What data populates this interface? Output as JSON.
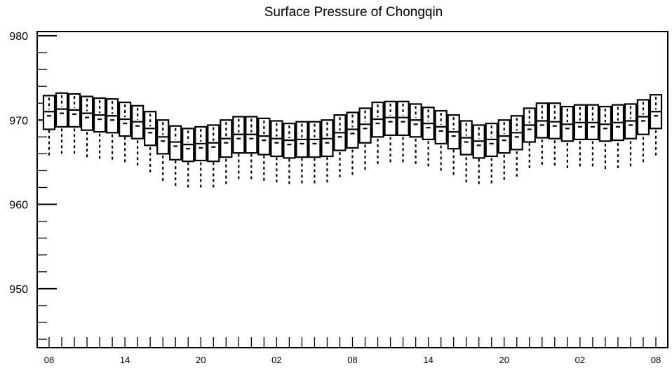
{
  "chart_data": {
    "type": "box",
    "title": "Surface Pressure of Chongqin",
    "xlabel": "",
    "ylabel": "",
    "ylim": [
      943,
      980.5
    ],
    "yticks": [
      950,
      960,
      970,
      980
    ],
    "ytick_labels": [
      "950",
      "960",
      "970",
      "980"
    ],
    "xtick_labels": [
      "08",
      "14",
      "20",
      "02",
      "08",
      "14",
      "20",
      "02",
      "08"
    ],
    "xtick_positions": [
      0,
      6,
      12,
      18,
      24,
      30,
      36,
      42,
      48
    ],
    "grid": false,
    "boxes": [
      {
        "x": 0,
        "whislo": 965.8,
        "q1": 968.9,
        "med": 971.0,
        "q3": 972.9,
        "whishi": 972.9
      },
      {
        "x": 1,
        "whislo": 966.0,
        "q1": 969.2,
        "med": 971.3,
        "q3": 973.2,
        "whishi": 973.2
      },
      {
        "x": 2,
        "whislo": 966.0,
        "q1": 969.2,
        "med": 971.2,
        "q3": 973.1,
        "whishi": 973.1
      },
      {
        "x": 3,
        "whislo": 965.6,
        "q1": 968.8,
        "med": 970.8,
        "q3": 972.8,
        "whishi": 972.8
      },
      {
        "x": 4,
        "whislo": 965.4,
        "q1": 968.6,
        "med": 970.6,
        "q3": 972.6,
        "whishi": 972.6
      },
      {
        "x": 5,
        "whislo": 965.3,
        "q1": 968.5,
        "med": 970.5,
        "q3": 972.5,
        "whishi": 972.5
      },
      {
        "x": 6,
        "whislo": 965.0,
        "q1": 968.1,
        "med": 970.1,
        "q3": 972.1,
        "whishi": 972.1
      },
      {
        "x": 7,
        "whislo": 964.6,
        "q1": 967.8,
        "med": 969.8,
        "q3": 971.7,
        "whishi": 971.7
      },
      {
        "x": 8,
        "whislo": 963.8,
        "q1": 967.0,
        "med": 969.0,
        "q3": 971.0,
        "whishi": 971.0
      },
      {
        "x": 9,
        "whislo": 962.8,
        "q1": 966.0,
        "med": 968.0,
        "q3": 970.0,
        "whishi": 970.0
      },
      {
        "x": 10,
        "whislo": 962.2,
        "q1": 965.3,
        "med": 967.4,
        "q3": 969.3,
        "whishi": 969.3
      },
      {
        "x": 11,
        "whislo": 962.0,
        "q1": 965.1,
        "med": 967.1,
        "q3": 969.0,
        "whishi": 969.0
      },
      {
        "x": 12,
        "whislo": 962.0,
        "q1": 965.2,
        "med": 967.2,
        "q3": 969.2,
        "whishi": 969.2
      },
      {
        "x": 13,
        "whislo": 962.0,
        "q1": 965.1,
        "med": 967.3,
        "q3": 969.4,
        "whishi": 969.4
      },
      {
        "x": 14,
        "whislo": 962.4,
        "q1": 965.6,
        "med": 967.8,
        "q3": 970.0,
        "whishi": 970.0
      },
      {
        "x": 15,
        "whislo": 963.0,
        "q1": 966.1,
        "med": 968.3,
        "q3": 970.4,
        "whishi": 970.4
      },
      {
        "x": 16,
        "whislo": 963.0,
        "q1": 966.1,
        "med": 968.3,
        "q3": 970.4,
        "whishi": 970.4
      },
      {
        "x": 17,
        "whislo": 962.8,
        "q1": 965.9,
        "med": 968.1,
        "q3": 970.2,
        "whishi": 970.2
      },
      {
        "x": 18,
        "whislo": 962.6,
        "q1": 965.7,
        "med": 967.8,
        "q3": 969.9,
        "whishi": 969.9
      },
      {
        "x": 19,
        "whislo": 962.4,
        "q1": 965.5,
        "med": 967.6,
        "q3": 969.6,
        "whishi": 969.6
      },
      {
        "x": 20,
        "whislo": 962.5,
        "q1": 965.6,
        "med": 967.7,
        "q3": 969.8,
        "whishi": 969.8
      },
      {
        "x": 21,
        "whislo": 962.5,
        "q1": 965.6,
        "med": 967.7,
        "q3": 969.8,
        "whishi": 969.8
      },
      {
        "x": 22,
        "whislo": 962.6,
        "q1": 965.7,
        "med": 967.8,
        "q3": 970.0,
        "whishi": 970.0
      },
      {
        "x": 23,
        "whislo": 963.2,
        "q1": 966.4,
        "med": 968.5,
        "q3": 970.6,
        "whishi": 970.6
      },
      {
        "x": 24,
        "whislo": 963.5,
        "q1": 966.7,
        "med": 968.9,
        "q3": 970.9,
        "whishi": 970.9
      },
      {
        "x": 25,
        "whislo": 964.1,
        "q1": 967.3,
        "med": 969.5,
        "q3": 971.4,
        "whishi": 971.4
      },
      {
        "x": 26,
        "whislo": 964.8,
        "q1": 968.0,
        "med": 970.1,
        "q3": 972.1,
        "whishi": 972.1
      },
      {
        "x": 27,
        "whislo": 965.0,
        "q1": 968.2,
        "med": 970.3,
        "q3": 972.2,
        "whishi": 972.2
      },
      {
        "x": 28,
        "whislo": 965.0,
        "q1": 968.2,
        "med": 970.3,
        "q3": 972.2,
        "whishi": 972.2
      },
      {
        "x": 29,
        "whislo": 964.8,
        "q1": 968.0,
        "med": 970.0,
        "q3": 971.9,
        "whishi": 971.9
      },
      {
        "x": 30,
        "whislo": 964.5,
        "q1": 967.7,
        "med": 969.6,
        "q3": 971.5,
        "whishi": 971.5
      },
      {
        "x": 31,
        "whislo": 964.0,
        "q1": 967.2,
        "med": 969.2,
        "q3": 971.1,
        "whishi": 971.1
      },
      {
        "x": 32,
        "whislo": 963.5,
        "q1": 966.6,
        "med": 968.6,
        "q3": 970.6,
        "whishi": 970.6
      },
      {
        "x": 33,
        "whislo": 962.6,
        "q1": 965.9,
        "med": 967.9,
        "q3": 969.9,
        "whishi": 969.9
      },
      {
        "x": 34,
        "whislo": 962.4,
        "q1": 965.5,
        "med": 967.5,
        "q3": 969.4,
        "whishi": 969.4
      },
      {
        "x": 35,
        "whislo": 962.5,
        "q1": 965.7,
        "med": 967.7,
        "q3": 969.6,
        "whishi": 969.6
      },
      {
        "x": 36,
        "whislo": 962.9,
        "q1": 966.1,
        "med": 968.1,
        "q3": 970.0,
        "whishi": 970.0
      },
      {
        "x": 37,
        "whislo": 963.3,
        "q1": 966.5,
        "med": 968.5,
        "q3": 970.5,
        "whishi": 970.5
      },
      {
        "x": 38,
        "whislo": 964.3,
        "q1": 967.4,
        "med": 969.4,
        "q3": 971.4,
        "whishi": 971.4
      },
      {
        "x": 39,
        "whislo": 964.7,
        "q1": 967.9,
        "med": 969.9,
        "q3": 972.0,
        "whishi": 972.0
      },
      {
        "x": 40,
        "whislo": 964.6,
        "q1": 967.8,
        "med": 969.8,
        "q3": 972.0,
        "whishi": 972.0
      },
      {
        "x": 41,
        "whislo": 964.3,
        "q1": 967.5,
        "med": 969.5,
        "q3": 971.6,
        "whishi": 971.6
      },
      {
        "x": 42,
        "whislo": 964.5,
        "q1": 967.7,
        "med": 969.7,
        "q3": 971.8,
        "whishi": 971.8
      },
      {
        "x": 43,
        "whislo": 964.5,
        "q1": 967.7,
        "med": 969.7,
        "q3": 971.8,
        "whishi": 971.8
      },
      {
        "x": 44,
        "whislo": 964.2,
        "q1": 967.5,
        "med": 969.5,
        "q3": 971.6,
        "whishi": 971.6
      },
      {
        "x": 45,
        "whislo": 964.3,
        "q1": 967.6,
        "med": 969.7,
        "q3": 971.8,
        "whishi": 971.8
      },
      {
        "x": 46,
        "whislo": 964.5,
        "q1": 967.8,
        "med": 969.9,
        "q3": 971.9,
        "whishi": 971.9
      },
      {
        "x": 47,
        "whislo": 965.0,
        "q1": 968.3,
        "med": 970.4,
        "q3": 972.4,
        "whishi": 972.4
      },
      {
        "x": 48,
        "whislo": 965.8,
        "q1": 969.0,
        "med": 971.0,
        "q3": 973.0,
        "whishi": 973.0
      }
    ]
  }
}
